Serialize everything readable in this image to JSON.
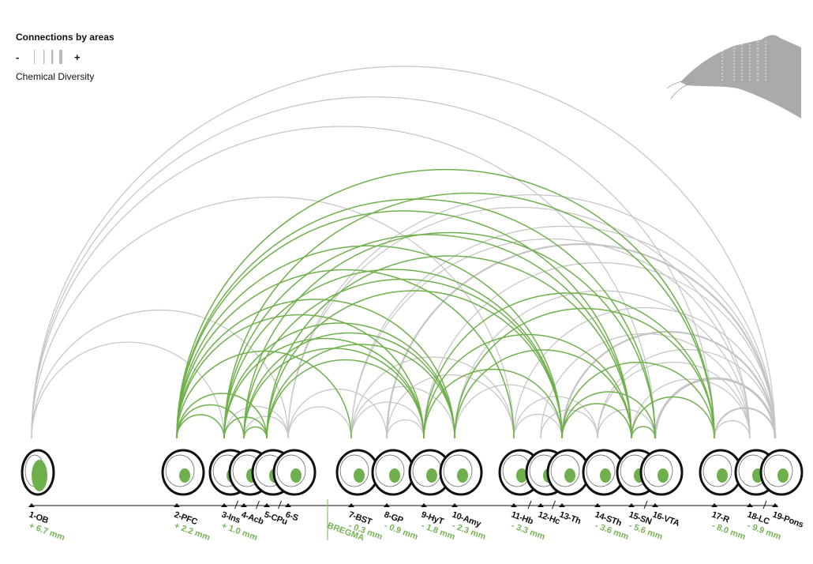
{
  "legend": {
    "title": "Connections by areas",
    "minus": "-",
    "plus": "+",
    "subtitle": "Chemical Diversity"
  },
  "bregma": "BREGMA",
  "nodes": [
    {
      "label": "1-OB",
      "coord": "+ 6.7 mm"
    },
    {
      "label": "2-PFC",
      "coord": "+ 2.2 mm"
    },
    {
      "label": "3-Ins",
      "coord": "+ 1.0 mm"
    },
    {
      "label": "4-Acb"
    },
    {
      "label": "5-CPu"
    },
    {
      "label": "6-S"
    },
    {
      "label": "7-BST",
      "coord": "- 0.3 mm"
    },
    {
      "label": "8-GP",
      "coord": "- 0.9 mm"
    },
    {
      "label": "9-HyT",
      "coord": "- 1.8 mm"
    },
    {
      "label": "10-Amy",
      "coord": "- 2.3 mm"
    },
    {
      "label": "11-Hb",
      "coord": "- 3.3 mm"
    },
    {
      "label": "12-Hc"
    },
    {
      "label": "13-Th"
    },
    {
      "label": "14-STh",
      "coord": "- 3.6 mm"
    },
    {
      "label": "15-SN",
      "coord": "- 5.6 mm"
    },
    {
      "label": "16-VTA"
    },
    {
      "label": "17-R",
      "coord": "- 8.0 mm"
    },
    {
      "label": "18-LC",
      "coord": "- 9.9 mm"
    },
    {
      "label": "19-Pons"
    }
  ]
}
